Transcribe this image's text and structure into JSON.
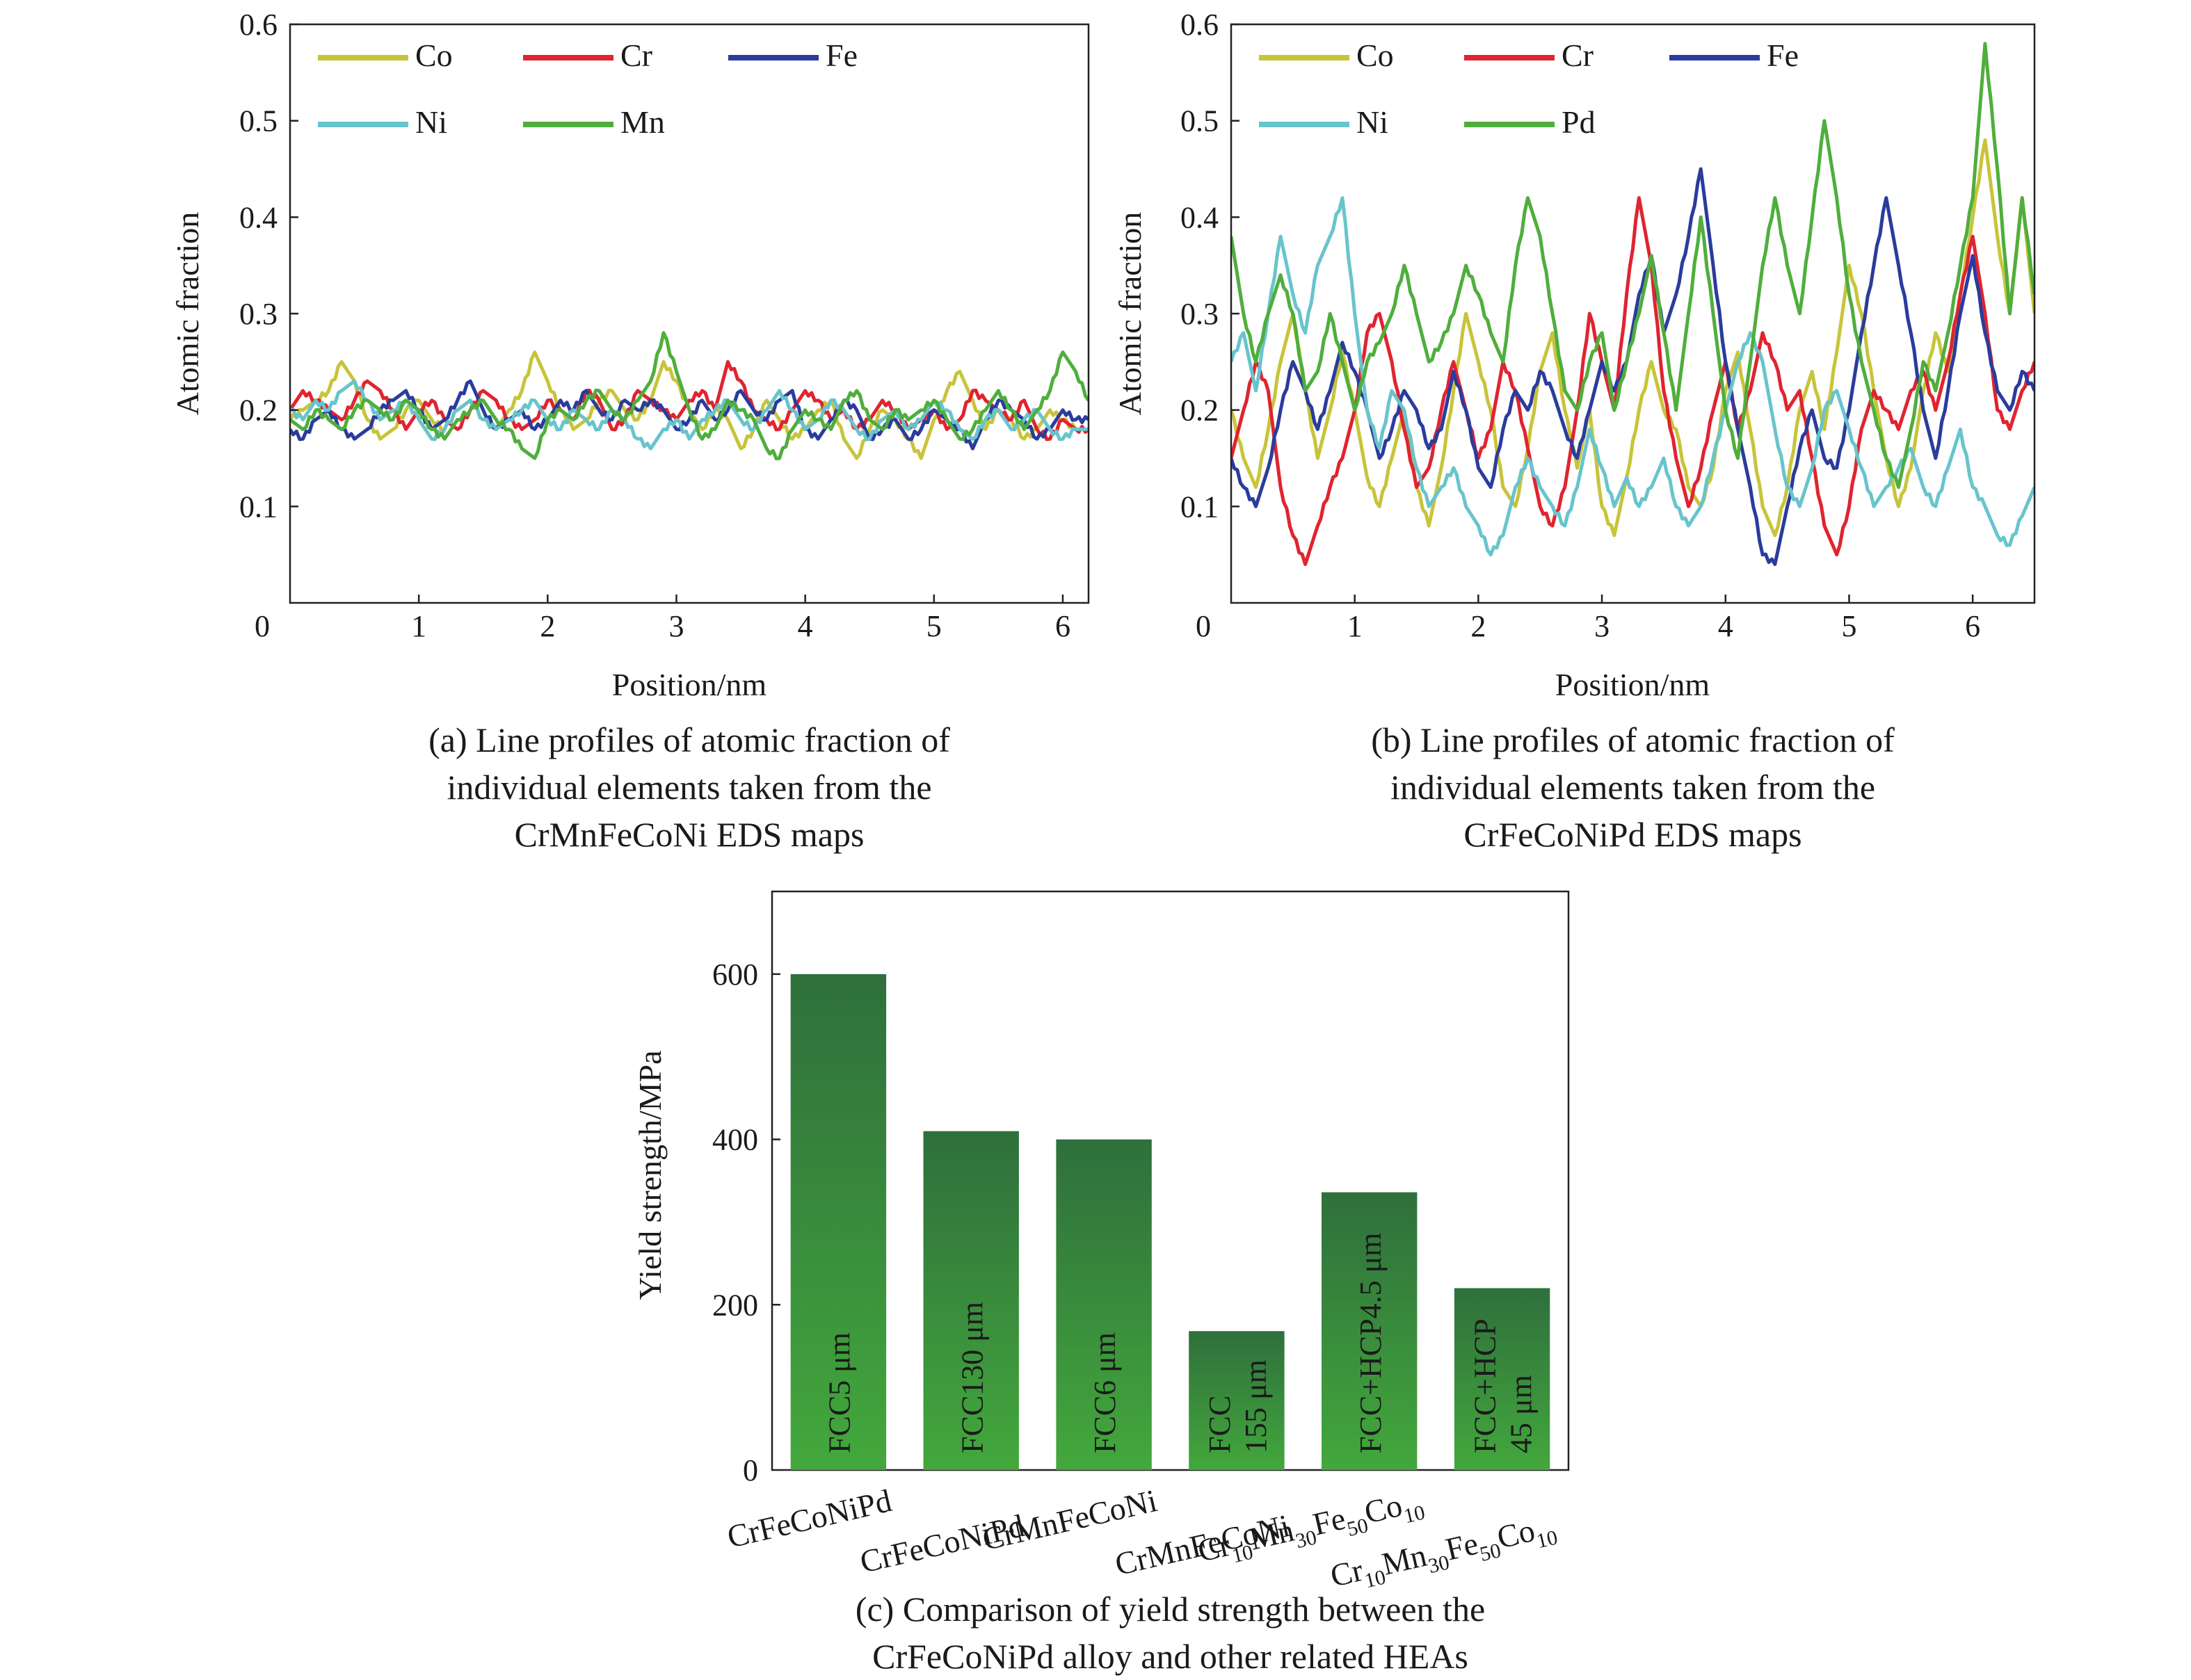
{
  "colors": {
    "Co": "#c8c43a",
    "Cr": "#e02430",
    "Fe": "#2a3c9c",
    "Ni": "#68c4cc",
    "Mn": "#4fae3c",
    "Pd": "#4fae3c",
    "bar_top": "#2f6f3c",
    "bar_bottom": "#43a83c"
  },
  "captions": {
    "a": [
      "(a) Line profiles of atomic fraction of",
      "individual elements taken from the",
      "CrMnFeCoNi EDS maps"
    ],
    "b": [
      "(b) Line profiles of atomic fraction of",
      "individual elements taken from the",
      "CrFeCoNiPd EDS maps"
    ],
    "c": [
      "(c) Comparison of yield strength between the",
      "CrFeCoNiPd alloy and other related HEAs"
    ]
  },
  "chart_data": [
    {
      "type": "line",
      "panel": "a",
      "xlabel": "Position/nm",
      "ylabel": "Atomic fraction",
      "xlim": [
        0,
        6.2
      ],
      "ylim": [
        0,
        0.6
      ],
      "x_ticks": [
        0,
        1,
        2,
        3,
        4,
        5,
        6
      ],
      "y_ticks": [
        0.1,
        0.2,
        0.3,
        0.4,
        0.5,
        0.6
      ],
      "y_tick_labels": [
        "0.1",
        "0.2",
        "0.3",
        "0.4",
        "0.5",
        "0.6"
      ],
      "legend": "top-left",
      "x": [
        0,
        0.1,
        0.2,
        0.3,
        0.4,
        0.5,
        0.6,
        0.7,
        0.8,
        0.9,
        1.0,
        1.1,
        1.2,
        1.3,
        1.4,
        1.5,
        1.6,
        1.7,
        1.8,
        1.9,
        2.0,
        2.1,
        2.2,
        2.3,
        2.4,
        2.5,
        2.6,
        2.7,
        2.8,
        2.9,
        3.0,
        3.1,
        3.2,
        3.3,
        3.4,
        3.5,
        3.6,
        3.7,
        3.8,
        3.9,
        4.0,
        4.1,
        4.2,
        4.3,
        4.4,
        4.5,
        4.6,
        4.7,
        4.8,
        4.9,
        5.0,
        5.1,
        5.2,
        5.3,
        5.4,
        5.5,
        5.6,
        5.7,
        5.8,
        5.9,
        6.0,
        6.1,
        6.2
      ],
      "series": [
        {
          "name": "Co",
          "values": [
            0.19,
            0.2,
            0.21,
            0.22,
            0.25,
            0.23,
            0.19,
            0.17,
            0.18,
            0.2,
            0.21,
            0.19,
            0.18,
            0.2,
            0.21,
            0.19,
            0.18,
            0.2,
            0.22,
            0.26,
            0.23,
            0.2,
            0.18,
            0.19,
            0.21,
            0.22,
            0.2,
            0.19,
            0.21,
            0.25,
            0.23,
            0.2,
            0.18,
            0.2,
            0.19,
            0.16,
            0.18,
            0.21,
            0.19,
            0.17,
            0.18,
            0.2,
            0.21,
            0.17,
            0.15,
            0.18,
            0.2,
            0.19,
            0.17,
            0.15,
            0.19,
            0.22,
            0.24,
            0.21,
            0.18,
            0.2,
            0.19,
            0.17,
            0.18,
            0.2,
            0.19,
            0.18,
            0.18
          ]
        },
        {
          "name": "Cr",
          "values": [
            0.2,
            0.22,
            0.21,
            0.2,
            0.19,
            0.21,
            0.23,
            0.22,
            0.2,
            0.18,
            0.2,
            0.21,
            0.19,
            0.18,
            0.2,
            0.22,
            0.21,
            0.19,
            0.18,
            0.19,
            0.21,
            0.2,
            0.19,
            0.22,
            0.21,
            0.18,
            0.19,
            0.22,
            0.21,
            0.2,
            0.19,
            0.21,
            0.22,
            0.2,
            0.25,
            0.23,
            0.2,
            0.19,
            0.18,
            0.2,
            0.22,
            0.21,
            0.19,
            0.2,
            0.18,
            0.19,
            0.21,
            0.2,
            0.18,
            0.19,
            0.2,
            0.18,
            0.19,
            0.22,
            0.21,
            0.2,
            0.19,
            0.21,
            0.18,
            0.17,
            0.19,
            0.18,
            0.18
          ]
        },
        {
          "name": "Fe",
          "values": [
            0.18,
            0.17,
            0.19,
            0.2,
            0.18,
            0.17,
            0.18,
            0.2,
            0.21,
            0.22,
            0.2,
            0.18,
            0.19,
            0.21,
            0.23,
            0.2,
            0.18,
            0.19,
            0.2,
            0.18,
            0.19,
            0.21,
            0.2,
            0.22,
            0.2,
            0.19,
            0.21,
            0.2,
            0.21,
            0.2,
            0.18,
            0.19,
            0.21,
            0.19,
            0.2,
            0.22,
            0.2,
            0.19,
            0.21,
            0.22,
            0.18,
            0.17,
            0.19,
            0.21,
            0.2,
            0.17,
            0.18,
            0.19,
            0.17,
            0.18,
            0.2,
            0.19,
            0.18,
            0.16,
            0.19,
            0.21,
            0.2,
            0.19,
            0.17,
            0.18,
            0.2,
            0.19,
            0.19
          ]
        },
        {
          "name": "Ni",
          "values": [
            0.2,
            0.19,
            0.21,
            0.2,
            0.22,
            0.23,
            0.21,
            0.19,
            0.2,
            0.21,
            0.19,
            0.17,
            0.18,
            0.2,
            0.21,
            0.19,
            0.18,
            0.19,
            0.2,
            0.21,
            0.19,
            0.18,
            0.2,
            0.19,
            0.18,
            0.2,
            0.19,
            0.17,
            0.16,
            0.18,
            0.19,
            0.17,
            0.19,
            0.2,
            0.21,
            0.19,
            0.18,
            0.2,
            0.22,
            0.2,
            0.18,
            0.19,
            0.21,
            0.2,
            0.18,
            0.17,
            0.19,
            0.2,
            0.18,
            0.19,
            0.21,
            0.2,
            0.18,
            0.17,
            0.19,
            0.2,
            0.18,
            0.19,
            0.2,
            0.18,
            0.17,
            0.18,
            0.18
          ]
        },
        {
          "name": "Mn",
          "values": [
            0.19,
            0.18,
            0.2,
            0.19,
            0.18,
            0.2,
            0.21,
            0.2,
            0.19,
            0.21,
            0.2,
            0.18,
            0.17,
            0.19,
            0.2,
            0.21,
            0.19,
            0.18,
            0.16,
            0.15,
            0.19,
            0.2,
            0.19,
            0.21,
            0.22,
            0.2,
            0.19,
            0.21,
            0.23,
            0.28,
            0.24,
            0.2,
            0.17,
            0.18,
            0.21,
            0.2,
            0.19,
            0.16,
            0.15,
            0.18,
            0.2,
            0.19,
            0.18,
            0.21,
            0.22,
            0.19,
            0.18,
            0.2,
            0.19,
            0.2,
            0.21,
            0.19,
            0.17,
            0.18,
            0.2,
            0.22,
            0.2,
            0.18,
            0.2,
            0.22,
            0.26,
            0.24,
            0.21
          ]
        }
      ]
    },
    {
      "type": "line",
      "panel": "b",
      "xlabel": "Position/nm",
      "ylabel": "Atomic fraction",
      "xlim": [
        0,
        6.5
      ],
      "ylim": [
        0,
        0.6
      ],
      "x_ticks": [
        0,
        1,
        2,
        3,
        4,
        5,
        6
      ],
      "y_ticks": [
        0.1,
        0.2,
        0.3,
        0.4,
        0.5,
        0.6
      ],
      "y_tick_labels": [
        "0.1",
        "0.2",
        "0.3",
        "0.4",
        "0.5",
        "0.6"
      ],
      "legend": "top-left",
      "x": [
        0,
        0.1,
        0.2,
        0.3,
        0.4,
        0.5,
        0.6,
        0.7,
        0.8,
        0.9,
        1.0,
        1.1,
        1.2,
        1.3,
        1.4,
        1.5,
        1.6,
        1.7,
        1.8,
        1.9,
        2.0,
        2.1,
        2.2,
        2.3,
        2.4,
        2.5,
        2.6,
        2.7,
        2.8,
        2.9,
        3.0,
        3.1,
        3.2,
        3.3,
        3.4,
        3.5,
        3.6,
        3.7,
        3.8,
        3.9,
        4.0,
        4.1,
        4.2,
        4.3,
        4.4,
        4.5,
        4.6,
        4.7,
        4.8,
        4.9,
        5.0,
        5.1,
        5.2,
        5.3,
        5.4,
        5.5,
        5.6,
        5.7,
        5.8,
        5.9,
        6.0,
        6.1,
        6.2,
        6.3,
        6.4,
        6.5
      ],
      "series": [
        {
          "name": "Co",
          "values": [
            0.2,
            0.15,
            0.12,
            0.18,
            0.25,
            0.3,
            0.22,
            0.15,
            0.2,
            0.26,
            0.2,
            0.13,
            0.1,
            0.15,
            0.2,
            0.12,
            0.08,
            0.14,
            0.22,
            0.3,
            0.25,
            0.2,
            0.12,
            0.1,
            0.16,
            0.24,
            0.28,
            0.2,
            0.14,
            0.2,
            0.1,
            0.07,
            0.13,
            0.2,
            0.25,
            0.2,
            0.18,
            0.12,
            0.1,
            0.14,
            0.22,
            0.26,
            0.18,
            0.1,
            0.07,
            0.12,
            0.2,
            0.24,
            0.18,
            0.26,
            0.35,
            0.3,
            0.22,
            0.15,
            0.1,
            0.14,
            0.22,
            0.28,
            0.24,
            0.32,
            0.4,
            0.48,
            0.38,
            0.3,
            0.42,
            0.3
          ]
        },
        {
          "name": "Cr",
          "values": [
            0.15,
            0.2,
            0.25,
            0.22,
            0.12,
            0.07,
            0.04,
            0.08,
            0.12,
            0.15,
            0.2,
            0.28,
            0.3,
            0.25,
            0.18,
            0.12,
            0.14,
            0.2,
            0.25,
            0.2,
            0.15,
            0.18,
            0.25,
            0.22,
            0.16,
            0.1,
            0.08,
            0.12,
            0.2,
            0.3,
            0.25,
            0.2,
            0.32,
            0.42,
            0.35,
            0.22,
            0.15,
            0.1,
            0.14,
            0.2,
            0.25,
            0.18,
            0.22,
            0.28,
            0.25,
            0.2,
            0.22,
            0.15,
            0.08,
            0.05,
            0.1,
            0.18,
            0.22,
            0.2,
            0.18,
            0.22,
            0.24,
            0.2,
            0.25,
            0.32,
            0.38,
            0.3,
            0.2,
            0.18,
            0.22,
            0.25
          ]
        },
        {
          "name": "Fe",
          "values": [
            0.15,
            0.12,
            0.1,
            0.14,
            0.2,
            0.25,
            0.22,
            0.18,
            0.22,
            0.27,
            0.24,
            0.2,
            0.15,
            0.18,
            0.22,
            0.2,
            0.16,
            0.18,
            0.24,
            0.2,
            0.14,
            0.12,
            0.18,
            0.22,
            0.2,
            0.24,
            0.22,
            0.18,
            0.15,
            0.2,
            0.25,
            0.22,
            0.25,
            0.32,
            0.36,
            0.28,
            0.32,
            0.38,
            0.45,
            0.35,
            0.25,
            0.18,
            0.12,
            0.05,
            0.04,
            0.1,
            0.16,
            0.2,
            0.15,
            0.14,
            0.2,
            0.28,
            0.35,
            0.42,
            0.35,
            0.28,
            0.2,
            0.15,
            0.22,
            0.3,
            0.36,
            0.28,
            0.22,
            0.2,
            0.24,
            0.22
          ]
        },
        {
          "name": "Ni",
          "values": [
            0.25,
            0.28,
            0.22,
            0.3,
            0.38,
            0.32,
            0.28,
            0.35,
            0.38,
            0.42,
            0.3,
            0.2,
            0.16,
            0.22,
            0.2,
            0.14,
            0.1,
            0.12,
            0.14,
            0.1,
            0.08,
            0.05,
            0.07,
            0.12,
            0.15,
            0.12,
            0.1,
            0.08,
            0.12,
            0.18,
            0.14,
            0.1,
            0.13,
            0.1,
            0.12,
            0.15,
            0.1,
            0.08,
            0.1,
            0.15,
            0.2,
            0.25,
            0.28,
            0.25,
            0.18,
            0.12,
            0.1,
            0.14,
            0.2,
            0.22,
            0.18,
            0.14,
            0.1,
            0.12,
            0.14,
            0.16,
            0.12,
            0.1,
            0.14,
            0.18,
            0.12,
            0.1,
            0.07,
            0.06,
            0.09,
            0.12
          ]
        },
        {
          "name": "Pd",
          "values": [
            0.38,
            0.3,
            0.25,
            0.3,
            0.34,
            0.3,
            0.22,
            0.24,
            0.3,
            0.25,
            0.2,
            0.25,
            0.27,
            0.3,
            0.35,
            0.3,
            0.25,
            0.27,
            0.3,
            0.35,
            0.32,
            0.28,
            0.25,
            0.35,
            0.42,
            0.38,
            0.3,
            0.22,
            0.2,
            0.25,
            0.28,
            0.2,
            0.25,
            0.3,
            0.36,
            0.28,
            0.2,
            0.3,
            0.4,
            0.3,
            0.2,
            0.15,
            0.25,
            0.35,
            0.42,
            0.35,
            0.3,
            0.4,
            0.5,
            0.42,
            0.32,
            0.25,
            0.2,
            0.15,
            0.12,
            0.18,
            0.25,
            0.22,
            0.28,
            0.35,
            0.42,
            0.58,
            0.45,
            0.3,
            0.42,
            0.32
          ]
        }
      ]
    },
    {
      "type": "bar",
      "panel": "c",
      "ylabel": "Yield strength/MPa",
      "ylim": [
        0,
        700
      ],
      "y_ticks": [
        0,
        200,
        400,
        600
      ],
      "y_tick_labels": [
        "0",
        "200",
        "400",
        "600"
      ],
      "categories": [
        {
          "label": "CrFeCoNiPd",
          "sub": []
        },
        {
          "label": "CrFeCoNiPd",
          "sub": []
        },
        {
          "label": "CrMnFeCoNi",
          "sub": []
        },
        {
          "label": "CrMnFeCoNi",
          "sub": []
        },
        {
          "label": "Cr",
          "sub": [
            [
              "10",
              "Mn"
            ],
            [
              "30",
              "Fe"
            ],
            [
              "50",
              "Co"
            ],
            [
              "10",
              ""
            ]
          ]
        },
        {
          "label": "Cr",
          "sub": [
            [
              "10",
              "Mn"
            ],
            [
              "30",
              "Fe"
            ],
            [
              "50",
              "Co"
            ],
            [
              "10",
              ""
            ]
          ]
        }
      ],
      "values": [
        600,
        410,
        400,
        168,
        336,
        220
      ],
      "bar_labels": [
        [
          "FCC5 μm"
        ],
        [
          "FCC130 μm"
        ],
        [
          "FCC6 μm"
        ],
        [
          "FCC",
          "155 μm"
        ],
        [
          "FCC+HCP4.5 μm"
        ],
        [
          "FCC+HCP",
          "45 μm"
        ]
      ]
    }
  ]
}
